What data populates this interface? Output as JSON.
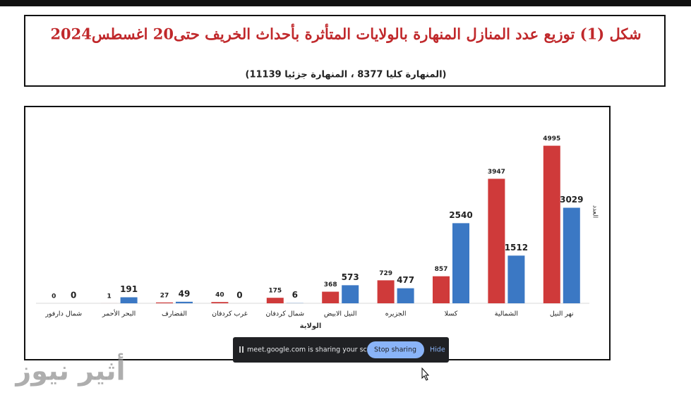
{
  "chart_data": {
    "type": "bar",
    "title": "شكل (1) توزيع عدد المنازل المنهارة بالولايات المتأثرة بأحداث الخريف حتى20 اغسطس2024",
    "subtitle": "(المنهارة كليا 8377 ، المنهارة جزئيا 11139)",
    "x_label": "الولاية",
    "y_label": "العدد",
    "categories": [
      "شمال دارفور",
      "البحر الأحمر",
      "القضارف",
      "غرب كردفان",
      "شمال كردفان",
      "النيل الابيض",
      "الجزيره",
      "كسلا",
      "الشمالية",
      "نهر النيل"
    ],
    "series": [
      {
        "color": "#cf3a3a",
        "values": [
          0,
          1,
          27,
          40,
          175,
          368,
          729,
          857,
          3947,
          4995
        ]
      },
      {
        "color": "#3b78c4",
        "values": [
          0,
          191,
          49,
          0,
          6,
          573,
          477,
          2540,
          1512,
          3029
        ]
      }
    ],
    "ylim": [
      0,
      5500
    ]
  },
  "screen_share": {
    "message": "meet.google.com is sharing your screen.",
    "stop_button": "Stop sharing",
    "hide_button": "Hide"
  },
  "watermark": "أثير نيوز"
}
